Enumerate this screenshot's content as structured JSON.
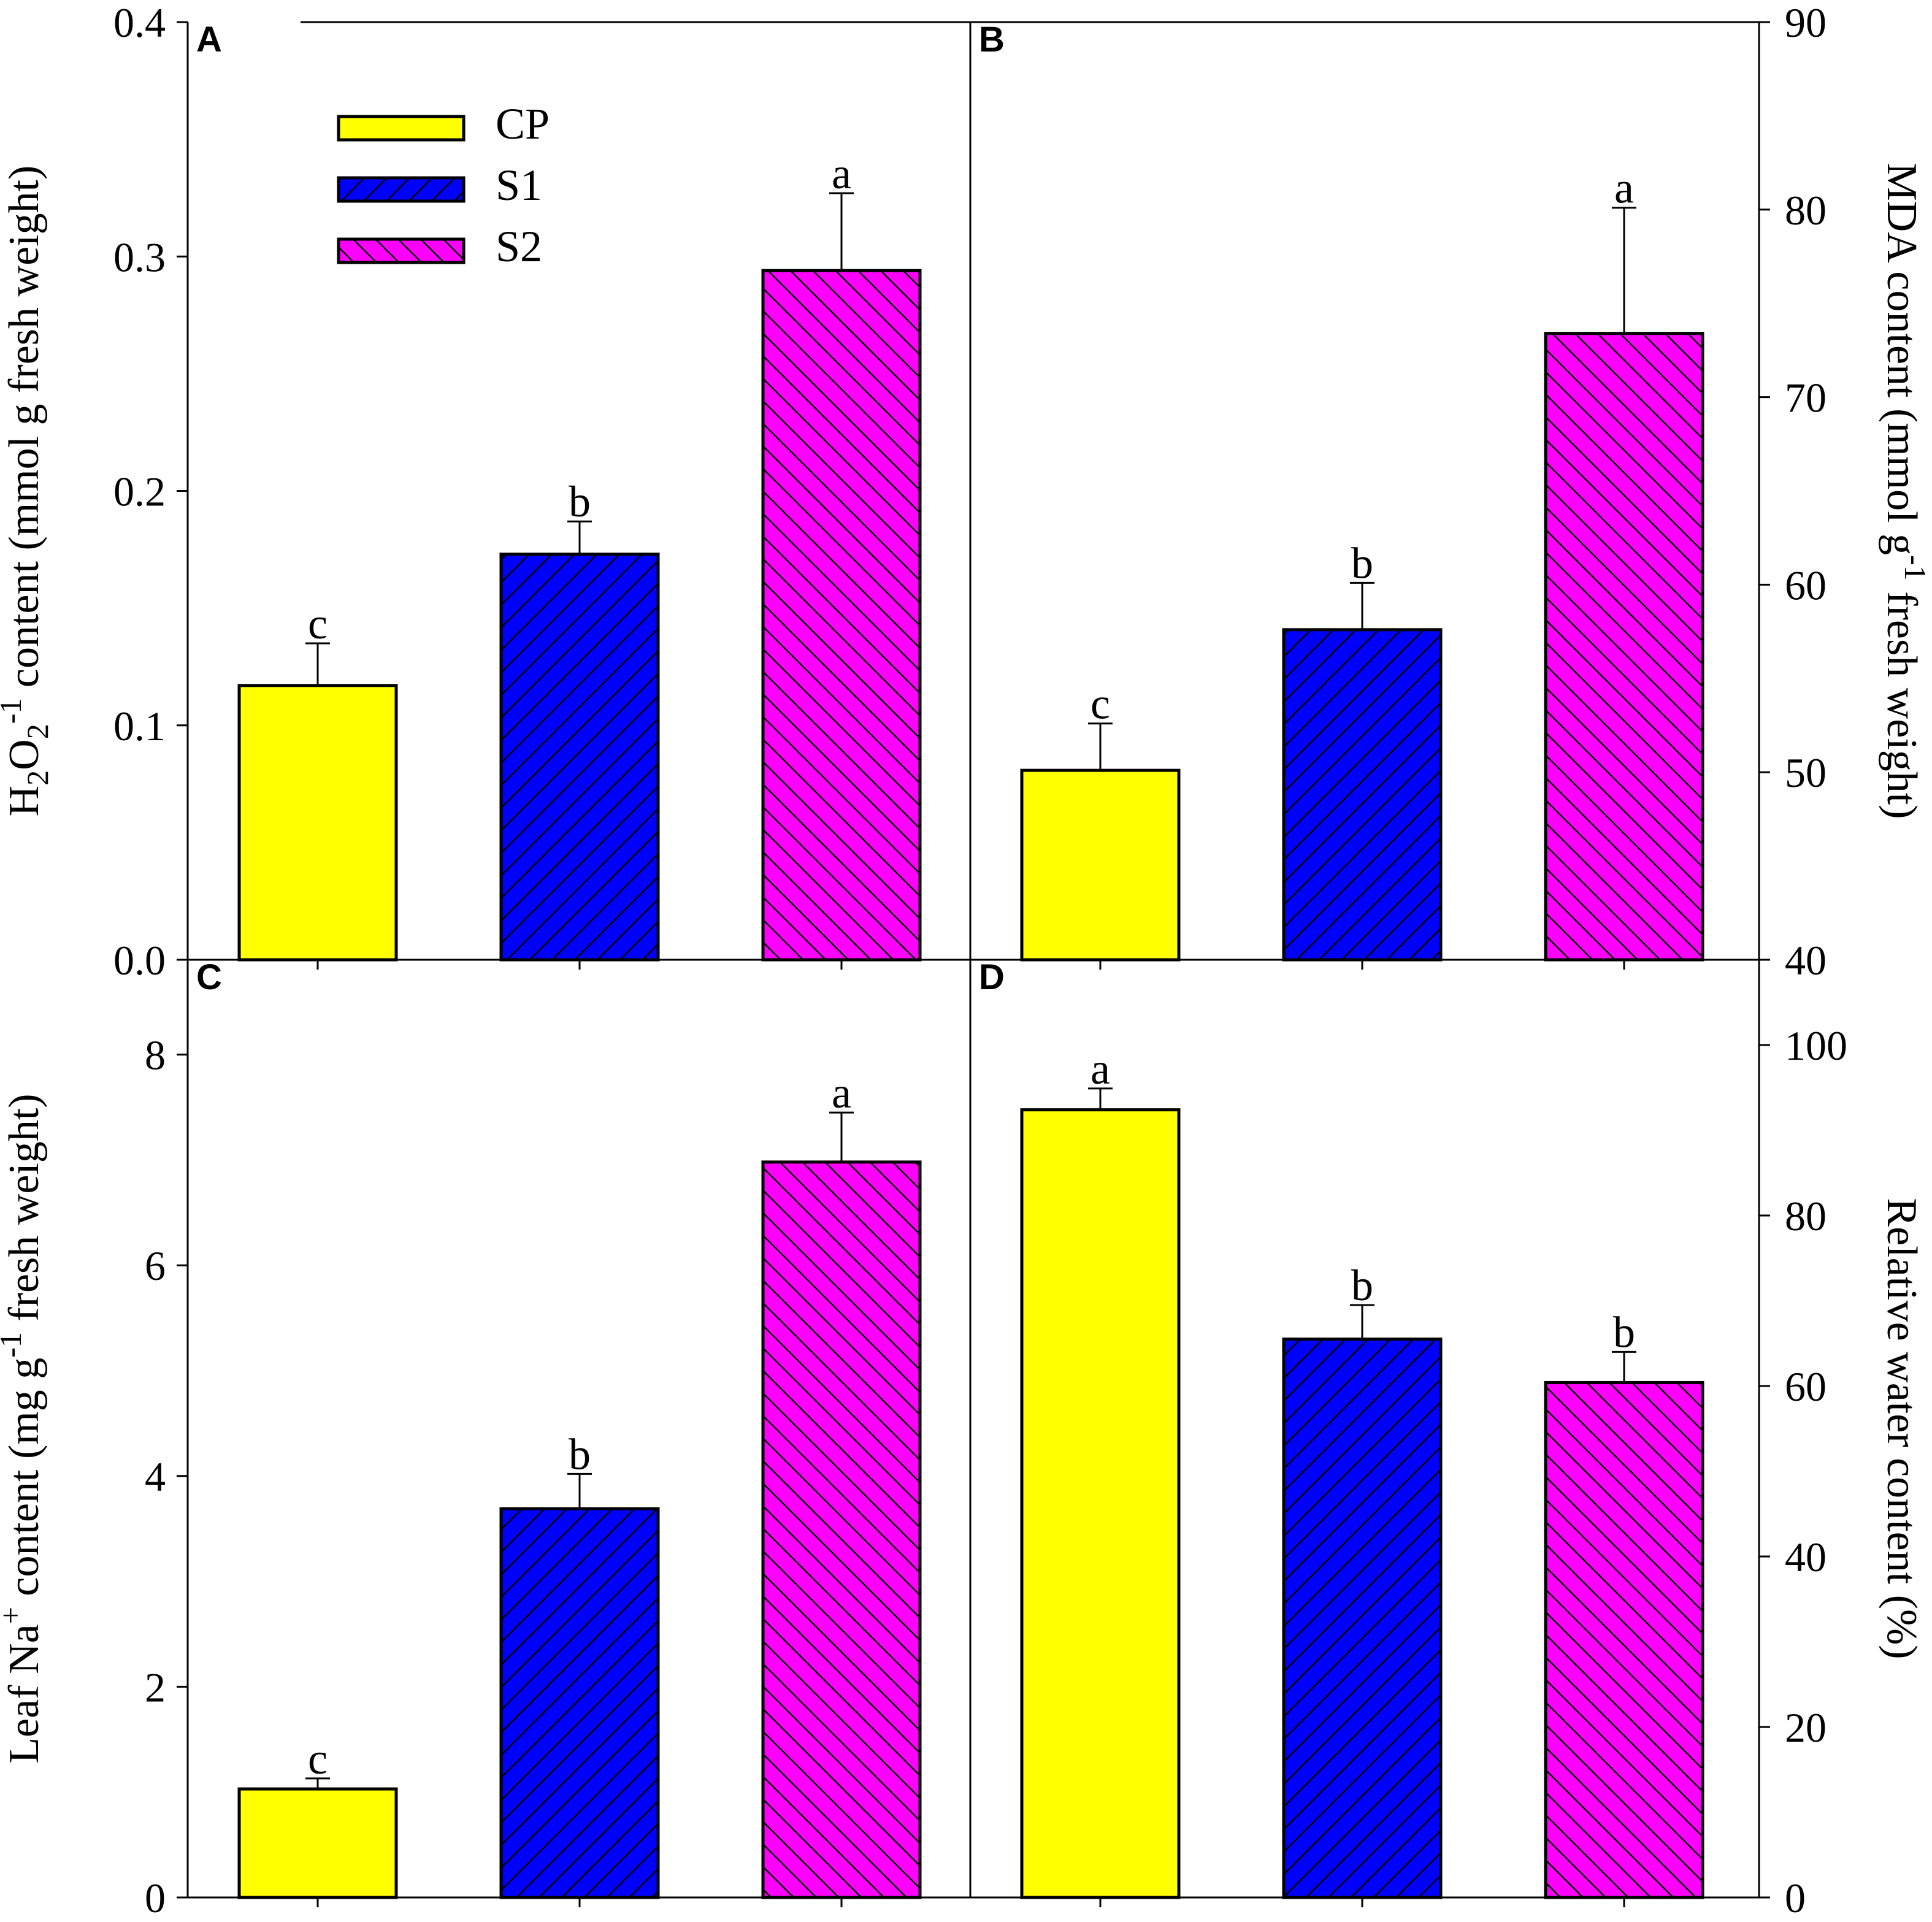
{
  "colors": {
    "CP": "#ffff00",
    "S1": "#0000ff",
    "S2": "#ff00ff"
  },
  "chart_data": [
    {
      "id": "A",
      "type": "bar",
      "panel_label": "A",
      "ylabel": {
        "pre": "H",
        "sub1": "2",
        "mid": "O",
        "sub2": "2",
        "post": " content (mmol g",
        "sup": "-1",
        "tail": " fresh weight)"
      },
      "ylim": [
        0,
        0.4
      ],
      "yticks": [
        "0.0",
        "0.1",
        "0.2",
        "0.3",
        "0.4"
      ],
      "yaxis_side": "left",
      "categories": [
        "CP",
        "S1",
        "S2"
      ],
      "values": [
        0.117,
        0.173,
        0.294
      ],
      "errors": [
        0.018,
        0.014,
        0.033
      ],
      "letters": [
        "c",
        "b",
        "a"
      ],
      "legend": [
        "CP",
        "S1",
        "S2"
      ]
    },
    {
      "id": "B",
      "type": "bar",
      "panel_label": "B",
      "ylabel": {
        "pre": "MDA content (mmol g",
        "sup": "-1",
        "tail": " fresh weight)"
      },
      "ylim": [
        40,
        90
      ],
      "yticks": [
        "40",
        "50",
        "60",
        "70",
        "80",
        "90"
      ],
      "yaxis_side": "right",
      "categories": [
        "CP",
        "S1",
        "S2"
      ],
      "values": [
        50.1,
        57.6,
        73.4
      ],
      "errors": [
        2.5,
        2.5,
        6.7
      ],
      "letters": [
        "c",
        "b",
        "a"
      ]
    },
    {
      "id": "C",
      "type": "bar",
      "panel_label": "C",
      "ylabel": {
        "pre": "Leaf Na",
        "sup": "+",
        "post": " content (mg g",
        "sup2": "-1",
        "tail": " fresh weight)"
      },
      "ylim": [
        0,
        8.9
      ],
      "yticks": [
        "0",
        "2",
        "4",
        "6",
        "8"
      ],
      "yaxis_side": "left",
      "categories": [
        "CP",
        "S1",
        "S2"
      ],
      "values": [
        1.03,
        3.69,
        6.98
      ],
      "errors": [
        0.1,
        0.33,
        0.47
      ],
      "letters": [
        "c",
        "b",
        "a"
      ]
    },
    {
      "id": "D",
      "type": "bar",
      "panel_label": "D",
      "ylabel": {
        "pre": "Relative water content (%)"
      },
      "ylim": [
        0,
        110
      ],
      "yticks": [
        "0",
        "20",
        "40",
        "60",
        "80",
        "100"
      ],
      "yaxis_side": "right",
      "categories": [
        "CP",
        "S1",
        "S2"
      ],
      "values": [
        92.4,
        65.5,
        60.4
      ],
      "errors": [
        2.5,
        4.0,
        3.6
      ],
      "letters": [
        "a",
        "b",
        "b"
      ]
    }
  ]
}
